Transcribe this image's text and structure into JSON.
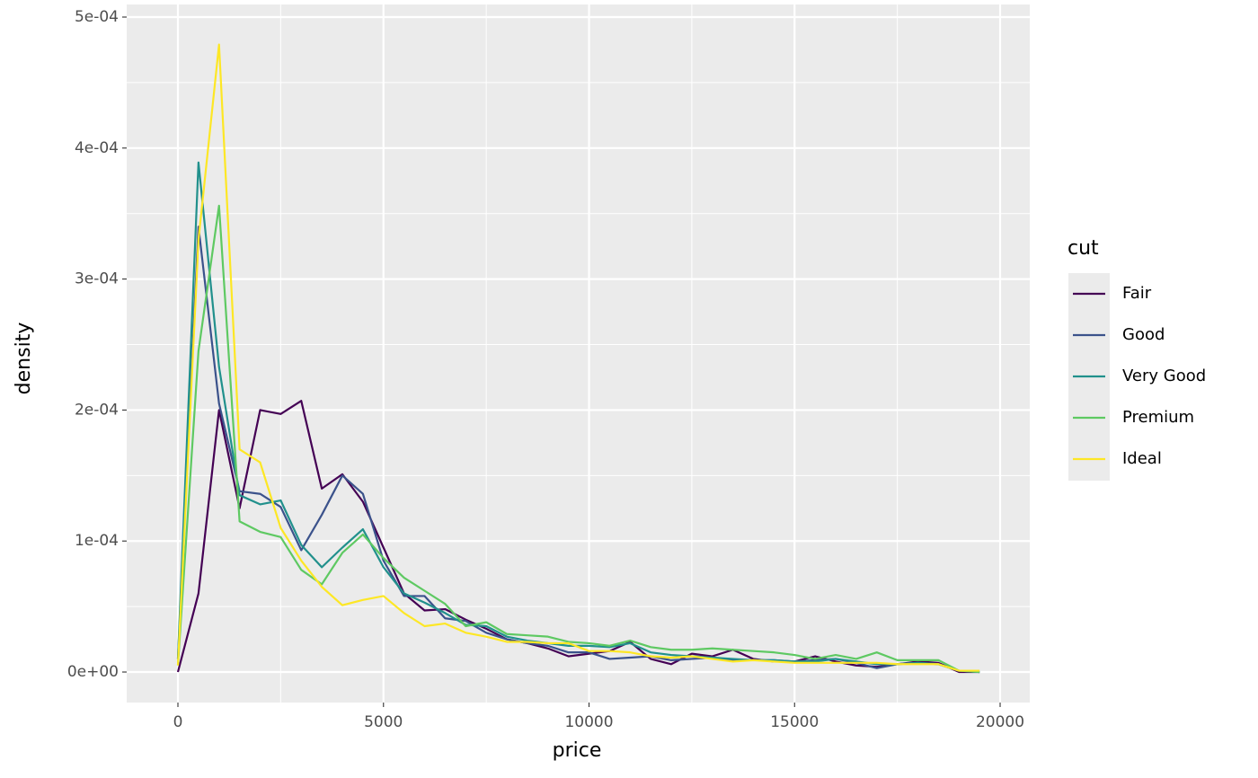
{
  "chart_data": {
    "type": "line",
    "x_label": "price",
    "y_label": "density",
    "legend_title": "cut",
    "grid": true,
    "legend_position": "right",
    "xlim": [
      -1246,
      20721
    ],
    "ylim": [
      -2.33e-05,
      0.0005096
    ],
    "xticks": [
      0,
      5000,
      10000,
      15000,
      20000
    ],
    "yticks": [
      {
        "value": 0,
        "label": "0e+00"
      },
      {
        "value": 0.0001,
        "label": "1e-04"
      },
      {
        "value": 0.0002,
        "label": "2e-04"
      },
      {
        "value": 0.0003,
        "label": "3e-04"
      },
      {
        "value": 0.0004,
        "label": "4e-04"
      },
      {
        "value": 0.0005,
        "label": "5e-04"
      }
    ],
    "x": [
      0,
      500,
      1000,
      1500,
      2000,
      2500,
      3000,
      3500,
      4000,
      4500,
      5000,
      5500,
      6000,
      6500,
      7000,
      7500,
      8000,
      8500,
      9000,
      9500,
      10000,
      10500,
      11000,
      11500,
      12000,
      12500,
      13000,
      13500,
      14000,
      14500,
      15000,
      15500,
      16000,
      16500,
      17000,
      17500,
      18000,
      18500,
      19000,
      19500
    ],
    "series": [
      {
        "name": "Fair",
        "color": "#440154",
        "values": [
          0,
          6e-05,
          0.0002,
          0.000125,
          0.0002,
          0.000197,
          0.000207,
          0.00014,
          0.000151,
          0.00013,
          9.5e-05,
          6e-05,
          4.7e-05,
          4.8e-05,
          4e-05,
          3.3e-05,
          2.5e-05,
          2.2e-05,
          1.8e-05,
          1.2e-05,
          1.4e-05,
          1.6e-05,
          2.3e-05,
          1e-05,
          6e-06,
          1.4e-05,
          1.2e-05,
          1.7e-05,
          1e-05,
          8e-06,
          8e-06,
          1.2e-05,
          8e-06,
          5e-06,
          4e-06,
          6e-06,
          8e-06,
          7e-06,
          0,
          0
        ]
      },
      {
        "name": "Good",
        "color": "#3b528b",
        "values": [
          1e-05,
          0.00034,
          0.000205,
          0.000138,
          0.000136,
          0.000126,
          9.3e-05,
          0.00012,
          0.00015,
          0.000136,
          8.5e-05,
          5.8e-05,
          5.8e-05,
          4.1e-05,
          3.9e-05,
          3e-05,
          2.5e-05,
          2.2e-05,
          2e-05,
          1.5e-05,
          1.5e-05,
          1e-05,
          1.1e-05,
          1.2e-05,
          9e-06,
          1e-05,
          1.1e-05,
          9e-06,
          9e-06,
          9e-06,
          8e-06,
          9e-06,
          1e-05,
          7e-06,
          3e-06,
          6e-06,
          7e-06,
          6e-06,
          1e-06,
          0
        ]
      },
      {
        "name": "Very Good",
        "color": "#21908c",
        "values": [
          1e-05,
          0.000389,
          0.000233,
          0.000135,
          0.000128,
          0.000131,
          9.7e-05,
          8e-05,
          9.5e-05,
          0.000109,
          8e-05,
          6e-05,
          5.3e-05,
          4.5e-05,
          3.6e-05,
          3.5e-05,
          2.7e-05,
          2.4e-05,
          2.2e-05,
          2e-05,
          2e-05,
          1.9e-05,
          2.2e-05,
          1.5e-05,
          1.3e-05,
          1.2e-05,
          1.1e-05,
          1e-05,
          9e-06,
          9e-06,
          8e-06,
          8e-06,
          1e-05,
          8e-06,
          6e-06,
          6e-06,
          7e-06,
          6e-06,
          1e-06,
          0
        ]
      },
      {
        "name": "Premium",
        "color": "#5ec962",
        "values": [
          5e-06,
          0.000245,
          0.000356,
          0.000115,
          0.000107,
          0.000103,
          7.8e-05,
          6.7e-05,
          9.1e-05,
          0.000105,
          8.7e-05,
          7.2e-05,
          6.2e-05,
          5.2e-05,
          3.5e-05,
          3.8e-05,
          2.9e-05,
          2.8e-05,
          2.7e-05,
          2.3e-05,
          2.2e-05,
          2e-05,
          2.4e-05,
          1.9e-05,
          1.7e-05,
          1.7e-05,
          1.8e-05,
          1.7e-05,
          1.6e-05,
          1.5e-05,
          1.3e-05,
          1e-05,
          1.3e-05,
          1e-05,
          1.5e-05,
          9e-06,
          9e-06,
          9e-06,
          1e-06,
          0
        ]
      },
      {
        "name": "Ideal",
        "color": "#fde725",
        "values": [
          5e-06,
          0.00033,
          0.000479,
          0.00017,
          0.00016,
          0.00011,
          8.5e-05,
          6.5e-05,
          5.1e-05,
          5.5e-05,
          5.8e-05,
          4.5e-05,
          3.5e-05,
          3.7e-05,
          3e-05,
          2.7e-05,
          2.3e-05,
          2.3e-05,
          2.2e-05,
          2.2e-05,
          1.6e-05,
          1.6e-05,
          1.5e-05,
          1.2e-05,
          1.1e-05,
          1.2e-05,
          1e-05,
          8e-06,
          9e-06,
          8e-06,
          7e-06,
          7e-06,
          7e-06,
          7e-06,
          7e-06,
          6e-06,
          6e-06,
          6e-06,
          1e-06,
          1e-06
        ]
      }
    ]
  }
}
